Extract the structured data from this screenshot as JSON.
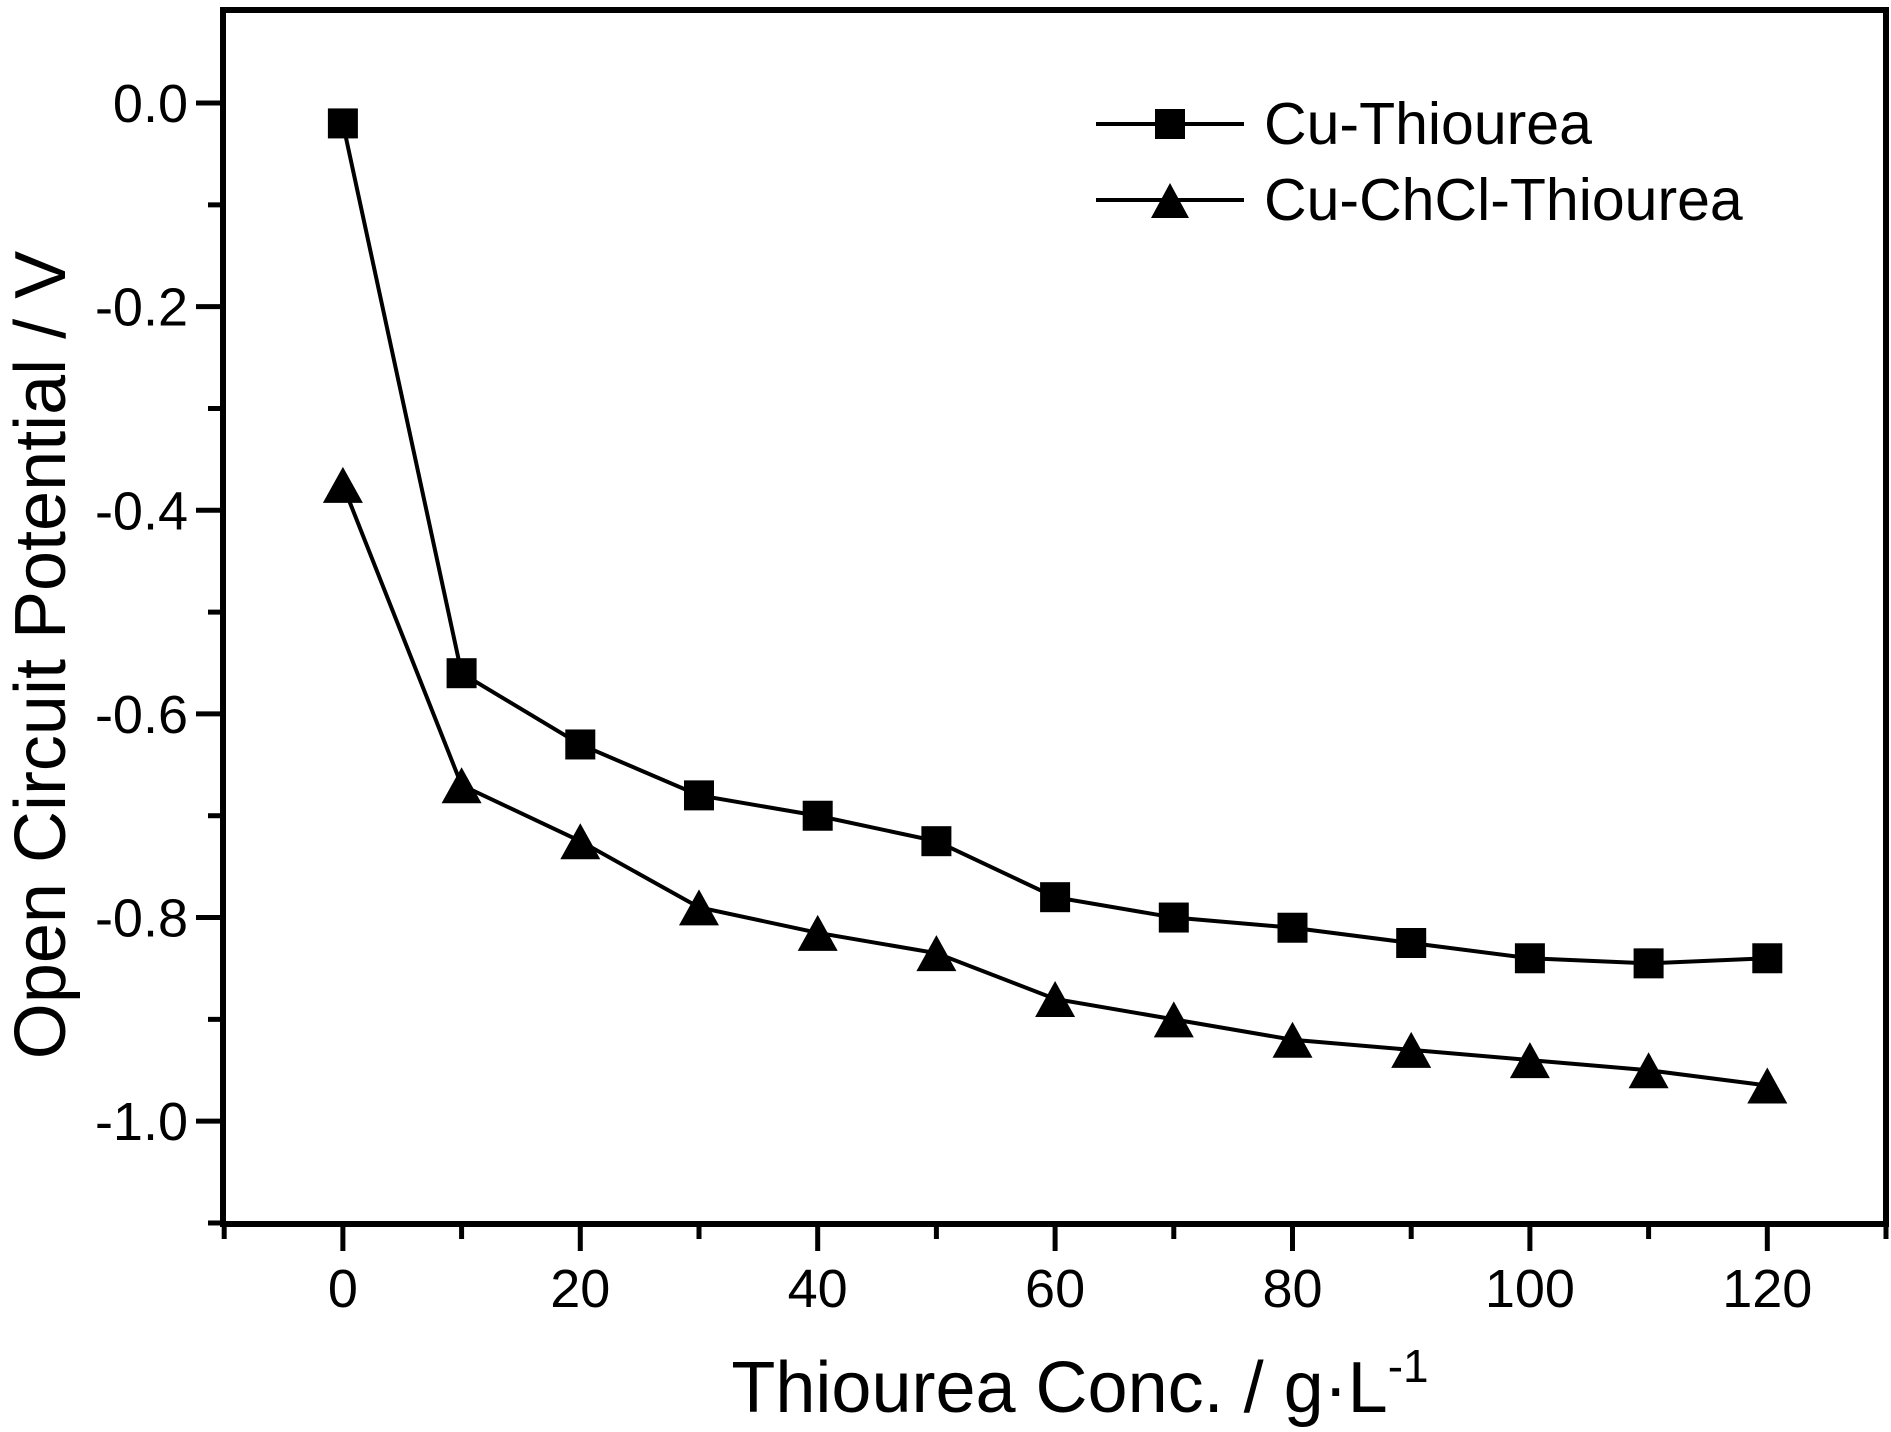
{
  "figure": {
    "background_color": "#ffffff",
    "foreground_color": "#000000"
  },
  "chart_data": {
    "type": "line",
    "title": "",
    "xlabel": "Thiourea Conc. / g·L",
    "xlabel_sup": "-1",
    "ylabel": "Open Circuit Potential / V",
    "x": [
      0,
      10,
      20,
      30,
      40,
      50,
      60,
      70,
      80,
      90,
      100,
      110,
      120
    ],
    "series": [
      {
        "name": "Cu-Thiourea",
        "marker": "square",
        "color": "#000000",
        "values": [
          -0.02,
          -0.56,
          -0.63,
          -0.68,
          -0.7,
          -0.725,
          -0.78,
          -0.8,
          -0.81,
          -0.825,
          -0.84,
          -0.845,
          -0.84
        ]
      },
      {
        "name": "Cu-ChCl-Thiourea",
        "marker": "triangle",
        "color": "#000000",
        "values": [
          -0.375,
          -0.67,
          -0.725,
          -0.79,
          -0.815,
          -0.835,
          -0.88,
          -0.9,
          -0.92,
          -0.93,
          -0.94,
          -0.95,
          -0.965
        ]
      }
    ],
    "xlim": [
      -10.1,
      130.0
    ],
    "ylim": [
      -1.101,
      0.0914
    ],
    "x_major_ticks": [
      0,
      20,
      40,
      60,
      80,
      100,
      120
    ],
    "x_tick_labels": [
      "0",
      "20",
      "40",
      "60",
      "80",
      "100",
      "120"
    ],
    "x_minor_ticks": [
      -10,
      10,
      30,
      50,
      70,
      90,
      110,
      130
    ],
    "y_major_ticks": [
      0.0,
      -0.2,
      -0.4,
      -0.6,
      -0.8,
      -1.0
    ],
    "y_tick_labels": [
      "0.0",
      "-0.2",
      "-0.4",
      "-0.6",
      "-0.8",
      "-1.0"
    ],
    "y_minor_ticks": [
      -0.1,
      -0.3,
      -0.5,
      -0.7,
      -0.9,
      -1.1
    ],
    "grid": false,
    "legend_position": "top-right"
  },
  "legend": {
    "items": [
      {
        "label": "Cu-Thiourea",
        "marker": "square-marker-icon"
      },
      {
        "label": "Cu-ChCl-Thiourea",
        "marker": "triangle-marker-icon"
      }
    ]
  }
}
